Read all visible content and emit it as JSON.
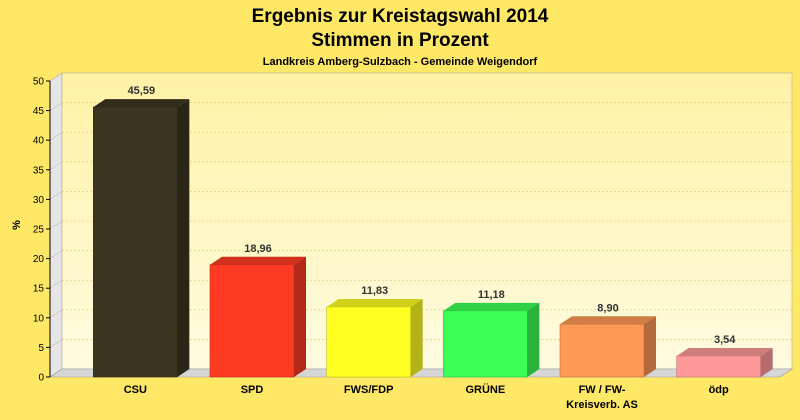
{
  "chart_data": {
    "type": "bar",
    "title_line1": "Ergebnis zur Kreistagswahl 2014",
    "title_line2": "Stimmen in Prozent",
    "subtitle": "Landkreis Amberg-Sulzbach - Gemeinde Weigendorf",
    "ylabel": "%",
    "xlabel": "",
    "ylim": [
      0,
      50
    ],
    "yticks": [
      0,
      5,
      10,
      15,
      20,
      25,
      30,
      35,
      40,
      45,
      50
    ],
    "grid": true,
    "categories": [
      {
        "line1": "CSU",
        "line2": ""
      },
      {
        "line1": "SPD",
        "line2": ""
      },
      {
        "line1": "FWS/FDP",
        "line2": ""
      },
      {
        "line1": "GRÜNE",
        "line2": ""
      },
      {
        "line1": "FW / FW-",
        "line2": "Kreisverb. AS"
      },
      {
        "line1": "ödp",
        "line2": ""
      }
    ],
    "values": [
      45.59,
      18.96,
      11.83,
      11.18,
      8.9,
      3.54
    ],
    "value_labels": [
      "45,59",
      "18,96",
      "11,83",
      "11,18",
      "8,90",
      "3,54"
    ],
    "colors": [
      "#3b3620",
      "#ff3a22",
      "#ffff22",
      "#3cff55",
      "#ff9955",
      "#ff9999"
    ]
  }
}
